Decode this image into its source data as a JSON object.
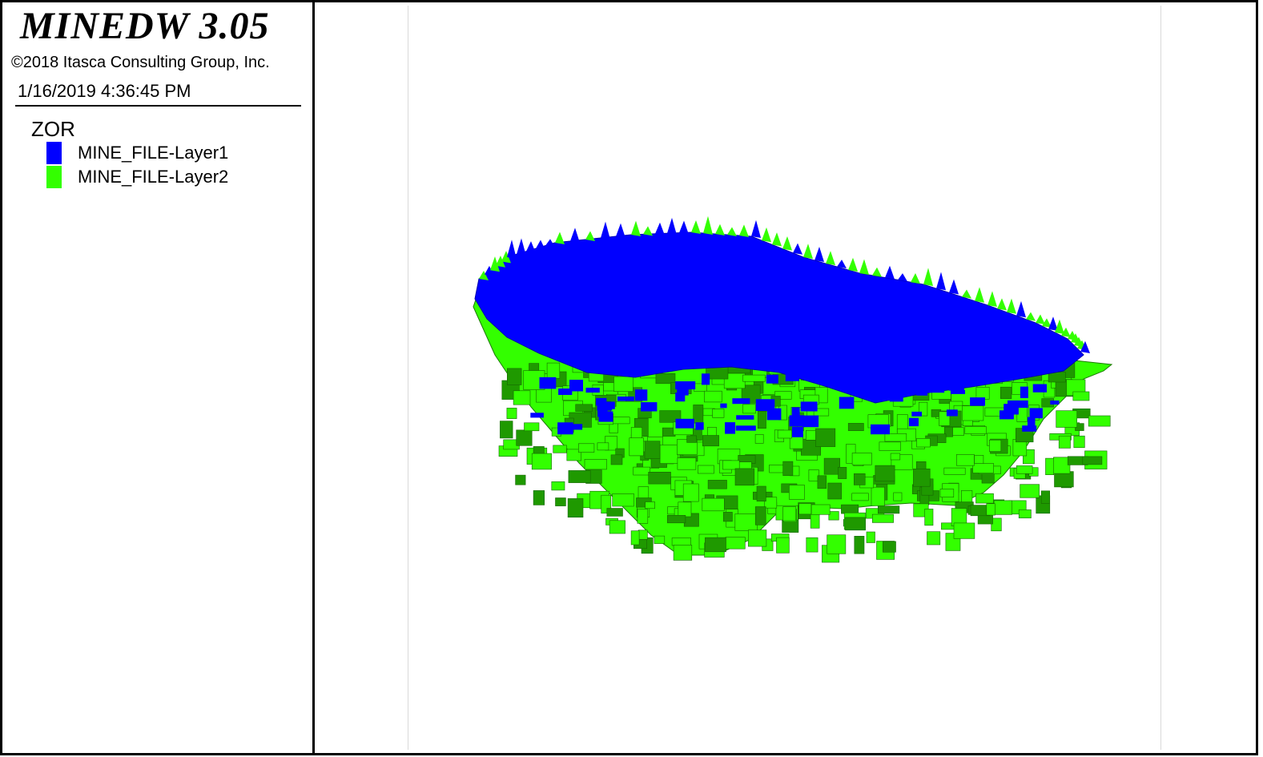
{
  "header": {
    "app_title": "MINEDW 3.05",
    "copyright": "©2018 Itasca Consulting Group, Inc.",
    "timestamp": "1/16/2019 4:36:45 PM"
  },
  "legend": {
    "title": "ZOR",
    "items": [
      {
        "label": "MINE_FILE-Layer1",
        "color": "#0000ff"
      },
      {
        "label": "MINE_FILE-Layer2",
        "color": "#33ff00"
      }
    ]
  },
  "model": {
    "colors": {
      "layer1": "#0000ff",
      "layer1_dark": "#0000b8",
      "layer2": "#33ff00",
      "layer2_dark": "#1f9900"
    }
  }
}
